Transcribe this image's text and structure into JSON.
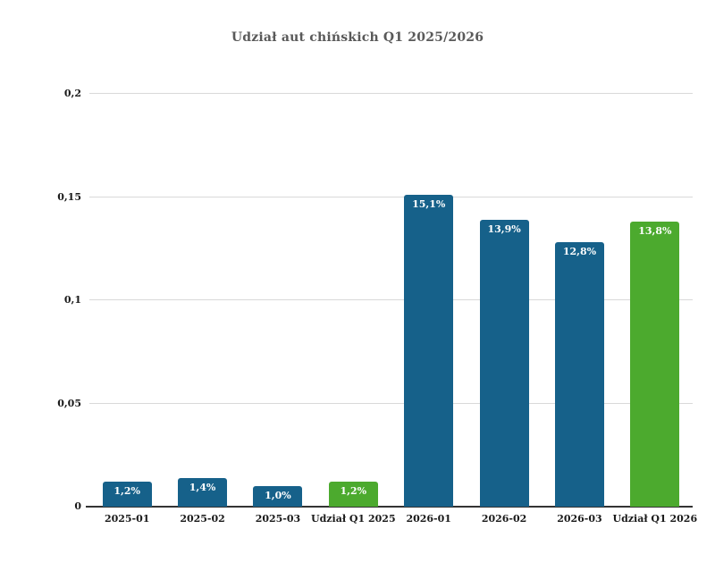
{
  "chart_data": {
    "type": "bar",
    "title": "Udział aut chińskich Q1 2025/2026",
    "categories": [
      "2025-01",
      "2025-02",
      "2025-03",
      "Udział Q1 2025",
      "2026-01",
      "2026-02",
      "2026-03",
      "Udział Q1 2026"
    ],
    "values": [
      0.012,
      0.014,
      0.01,
      0.012,
      0.151,
      0.139,
      0.128,
      0.138
    ],
    "value_labels": [
      "1,2%",
      "1,4%",
      "1,0%",
      "1,2%",
      "15,1%",
      "13,9%",
      "12,8%",
      "13,8%"
    ],
    "bar_color_keys": [
      "month",
      "month",
      "month",
      "quarter",
      "month",
      "month",
      "month",
      "quarter"
    ],
    "palette": {
      "month": "#16618a",
      "quarter": "#4caa2e"
    },
    "y_ticks": [
      {
        "label": "0",
        "value": 0
      },
      {
        "label": "0,05",
        "value": 0.05
      },
      {
        "label": "0,1",
        "value": 0.1
      },
      {
        "label": "0,15",
        "value": 0.15
      },
      {
        "label": "0,2",
        "value": 0.2
      }
    ],
    "ylim": [
      0,
      0.2
    ],
    "xlabel": "",
    "ylabel": "",
    "grid": true,
    "legend": "none",
    "colors": {
      "title": "#595959",
      "axis_line": "#333333",
      "gridline": "#d9d9d9",
      "tick_label": "#1a1a1a",
      "bar_label": "#ffffff",
      "background": "#ffffff"
    }
  }
}
